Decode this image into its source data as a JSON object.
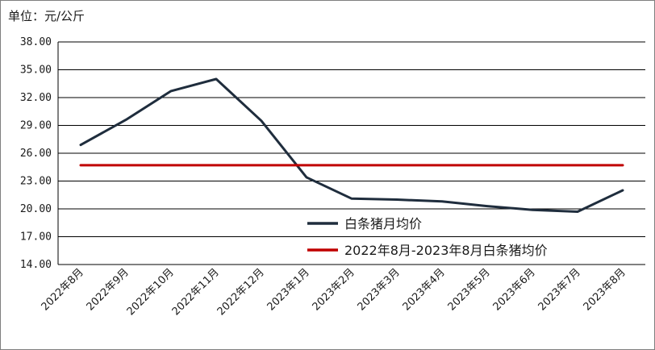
{
  "unit_label": "单位：元/公斤",
  "colors": {
    "series_monthly": "#1f2d3d",
    "series_average": "#c00000",
    "grid": "#000000"
  },
  "chart_data": {
    "type": "line",
    "categories": [
      "2022年8月",
      "2022年9月",
      "2022年10月",
      "2022年11月",
      "2022年12月",
      "2023年1月",
      "2023年2月",
      "2023年3月",
      "2023年4月",
      "2023年5月",
      "2023年6月",
      "2023年7月",
      "2023年8月"
    ],
    "ylim": [
      14,
      38
    ],
    "yticks": [
      "14.00",
      "17.00",
      "20.00",
      "23.00",
      "26.00",
      "29.00",
      "32.00",
      "35.00",
      "38.00"
    ],
    "series": [
      {
        "name": "白条猪月均价",
        "values": [
          26.9,
          29.6,
          32.7,
          34.0,
          29.5,
          23.4,
          21.1,
          21.0,
          20.8,
          20.3,
          19.9,
          19.7,
          22.0
        ]
      },
      {
        "name": "2022年8月-2023年8月白条猪均价",
        "values": [
          24.7,
          24.7,
          24.7,
          24.7,
          24.7,
          24.7,
          24.7,
          24.7,
          24.7,
          24.7,
          24.7,
          24.7,
          24.7
        ]
      }
    ],
    "grid": true,
    "legend_position": "bottom-right"
  }
}
